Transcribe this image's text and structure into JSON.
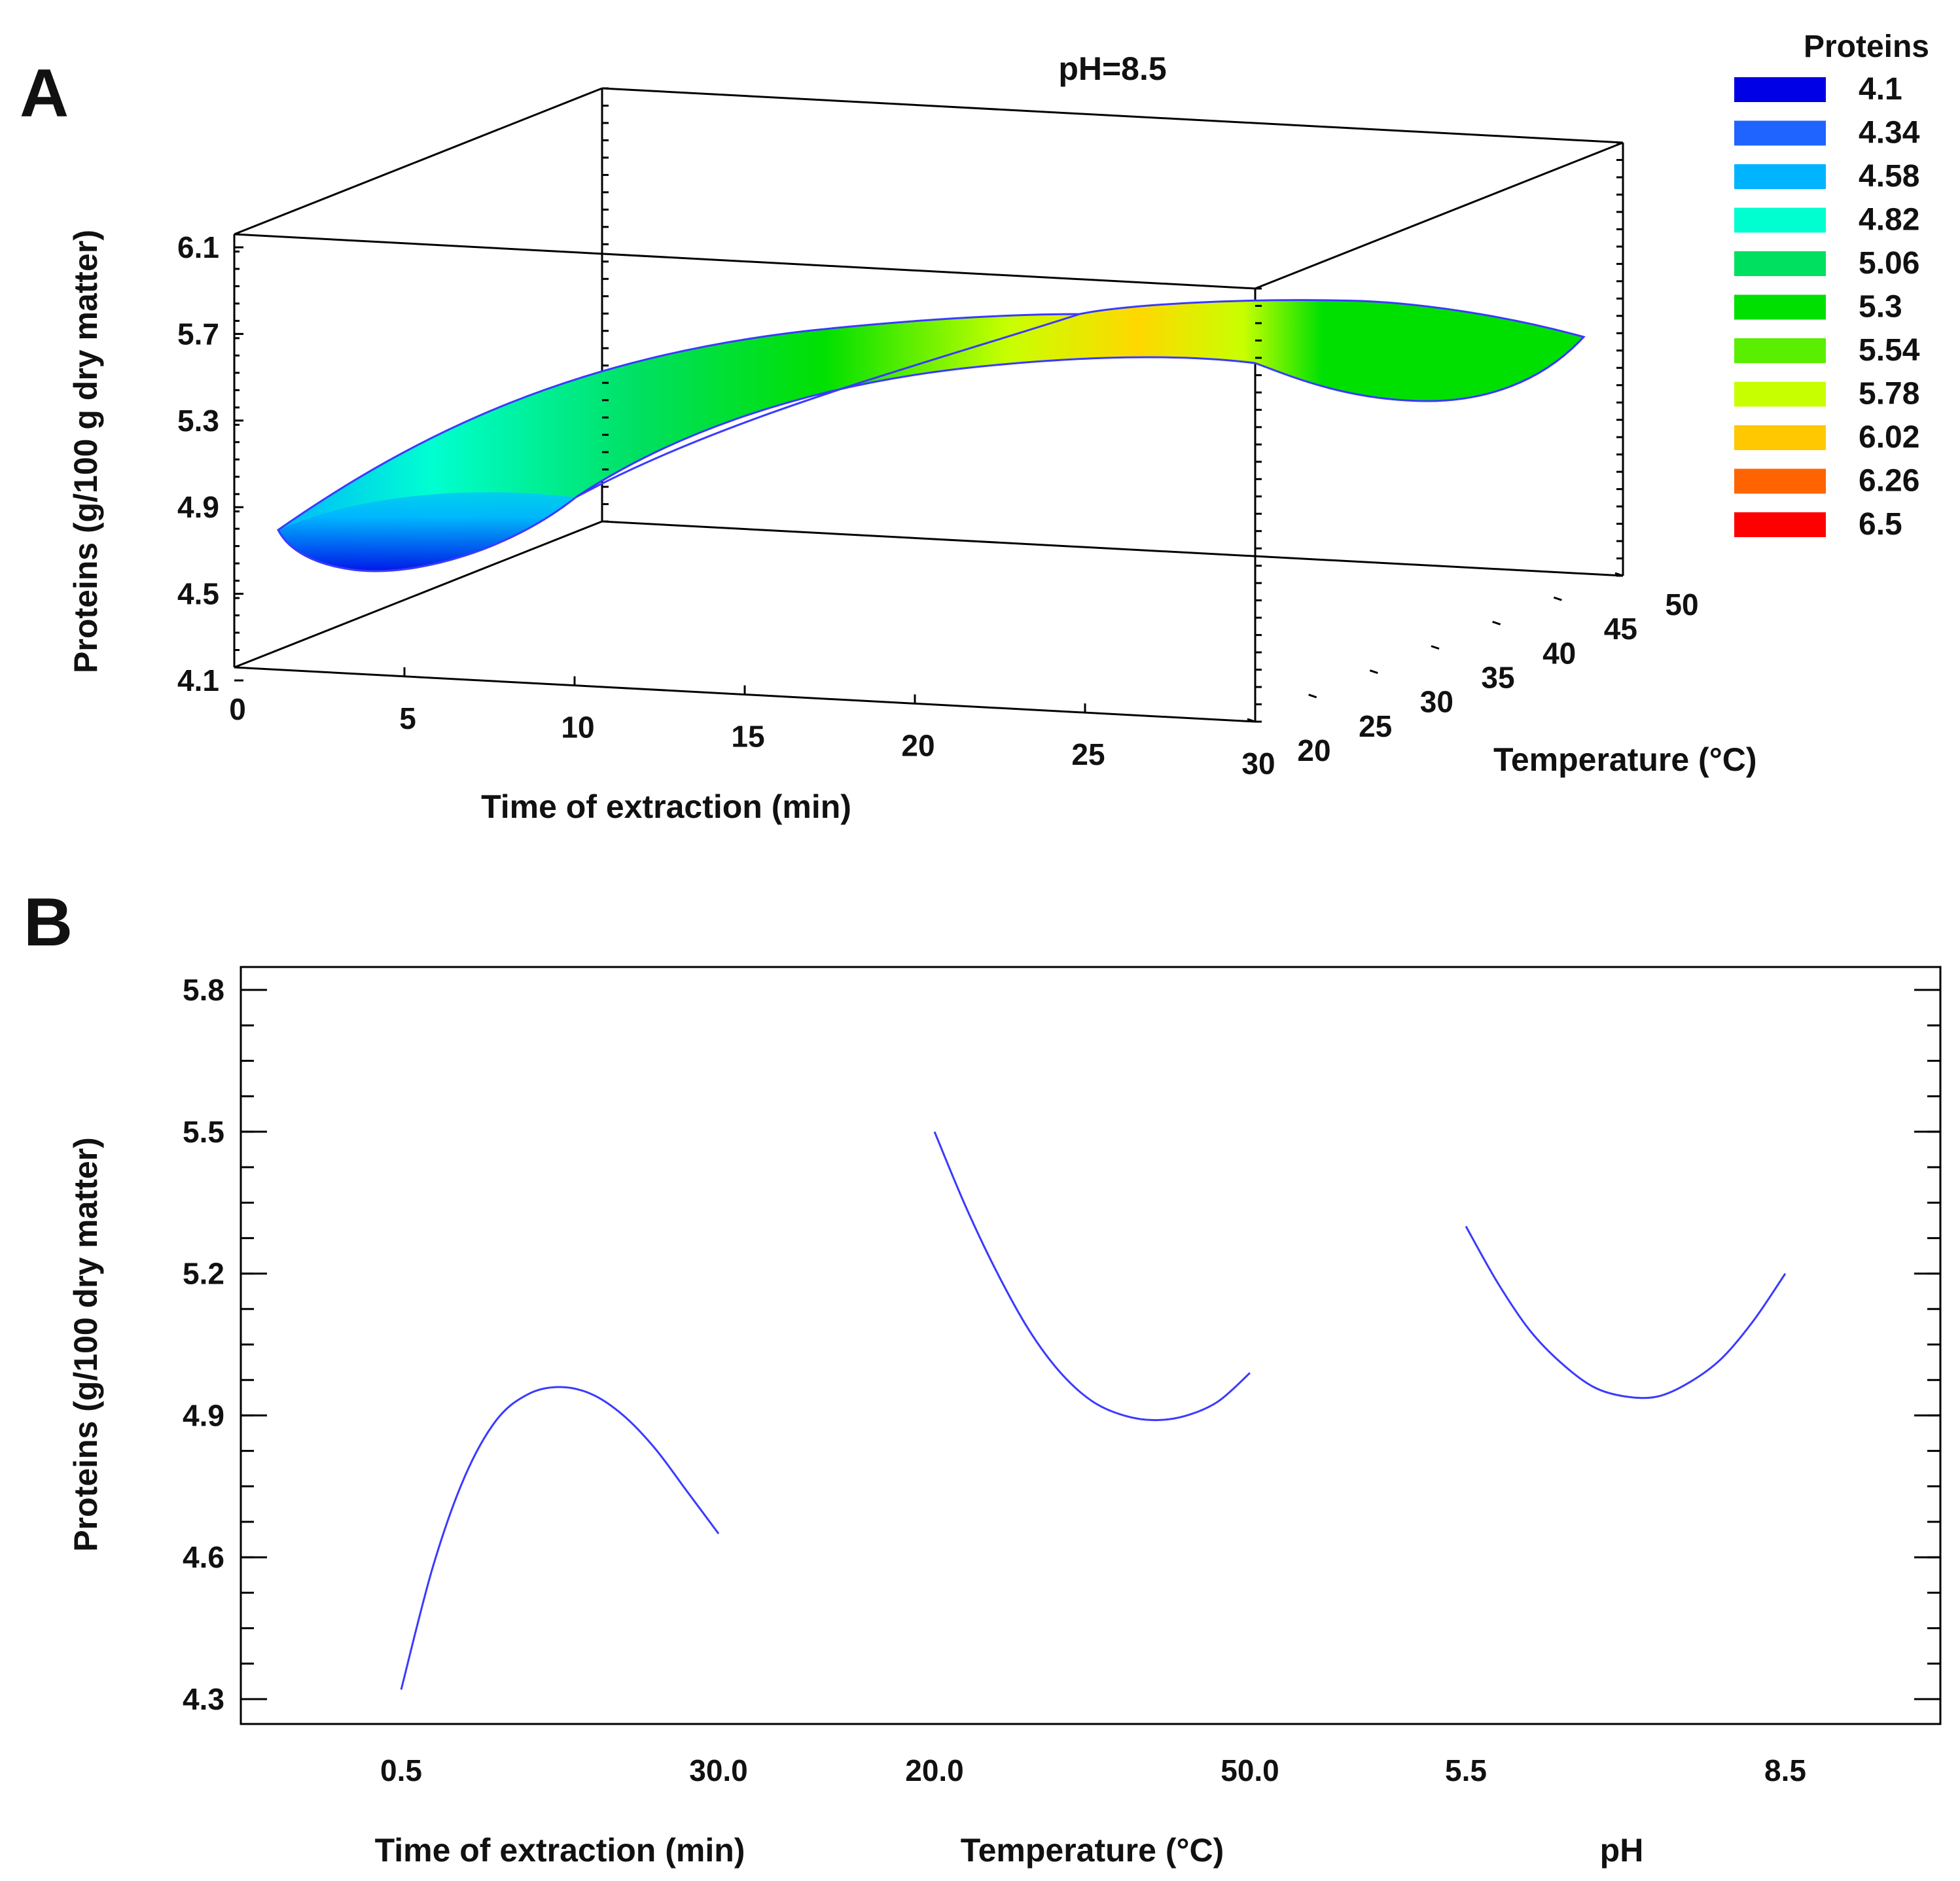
{
  "panel_a_label": "A",
  "panel_b_label": "B",
  "colors": {
    "curve": "#3a3aff",
    "frame": "#000000",
    "legend": [
      "#0000e6",
      "#1f64ff",
      "#00b4ff",
      "#00ffd0",
      "#00e060",
      "#00e000",
      "#5aee00",
      "#c8ff00",
      "#ffc800",
      "#ff6400",
      "#ff0000"
    ]
  },
  "chart_data": [
    {
      "id": "A",
      "type": "surface",
      "title": "pH=8.5",
      "xlabel": "Time of extraction (min)",
      "ylabel": "Temperature (°C)",
      "zlabel": "Proteins  (g/100 g dry matter)",
      "x_ticks": [
        "0",
        "5",
        "10",
        "15",
        "20",
        "25",
        "30"
      ],
      "y_ticks": [
        "20",
        "25",
        "30",
        "35",
        "40",
        "45",
        "50"
      ],
      "z_ticks": [
        "6.1",
        "5.7",
        "5.3",
        "4.9",
        "4.5",
        "4.1"
      ],
      "xlim": [
        0,
        30
      ],
      "ylim": [
        20,
        50
      ],
      "zlim": [
        4.1,
        6.1
      ],
      "surface_corners": {
        "t0_T20": 4.72,
        "t0_T50": 4.8,
        "t30_T20": 5.58,
        "t30_T50": 5.4
      },
      "legend_title": "Proteins",
      "legend_values": [
        "4.1",
        "4.34",
        "4.58",
        "4.82",
        "5.06",
        "5.3",
        "5.54",
        "5.78",
        "6.02",
        "6.26",
        "6.5"
      ]
    },
    {
      "id": "B",
      "type": "line",
      "ylabel": "Proteins (g/100 dry matter)",
      "ylim": [
        4.3,
        5.8
      ],
      "y_ticks": [
        "5.8",
        "5.5",
        "5.2",
        "4.9",
        "4.6",
        "4.3"
      ],
      "series": [
        {
          "name": "Time of extraction (min)",
          "range_labels": [
            "0.5",
            "30.0"
          ],
          "x": [
            0.0,
            0.1,
            0.2,
            0.3,
            0.4,
            0.5,
            0.6,
            0.7,
            0.8,
            0.9,
            1.0
          ],
          "values": [
            4.32,
            4.58,
            4.77,
            4.89,
            4.945,
            4.96,
            4.945,
            4.9,
            4.83,
            4.74,
            4.65
          ]
        },
        {
          "name": "Temperature (°C)",
          "range_labels": [
            "20.0",
            "50.0"
          ],
          "x": [
            0.0,
            0.1,
            0.2,
            0.3,
            0.4,
            0.5,
            0.6,
            0.7,
            0.8,
            0.9,
            1.0
          ],
          "values": [
            5.5,
            5.34,
            5.2,
            5.08,
            4.99,
            4.93,
            4.9,
            4.89,
            4.9,
            4.93,
            4.99
          ]
        },
        {
          "name": "pH",
          "range_labels": [
            "5.5",
            "8.5"
          ],
          "x": [
            0.0,
            0.1,
            0.2,
            0.3,
            0.4,
            0.5,
            0.6,
            0.7,
            0.8,
            0.9,
            1.0
          ],
          "values": [
            5.3,
            5.18,
            5.08,
            5.01,
            4.96,
            4.94,
            4.94,
            4.97,
            5.02,
            5.1,
            5.2
          ]
        }
      ]
    }
  ]
}
